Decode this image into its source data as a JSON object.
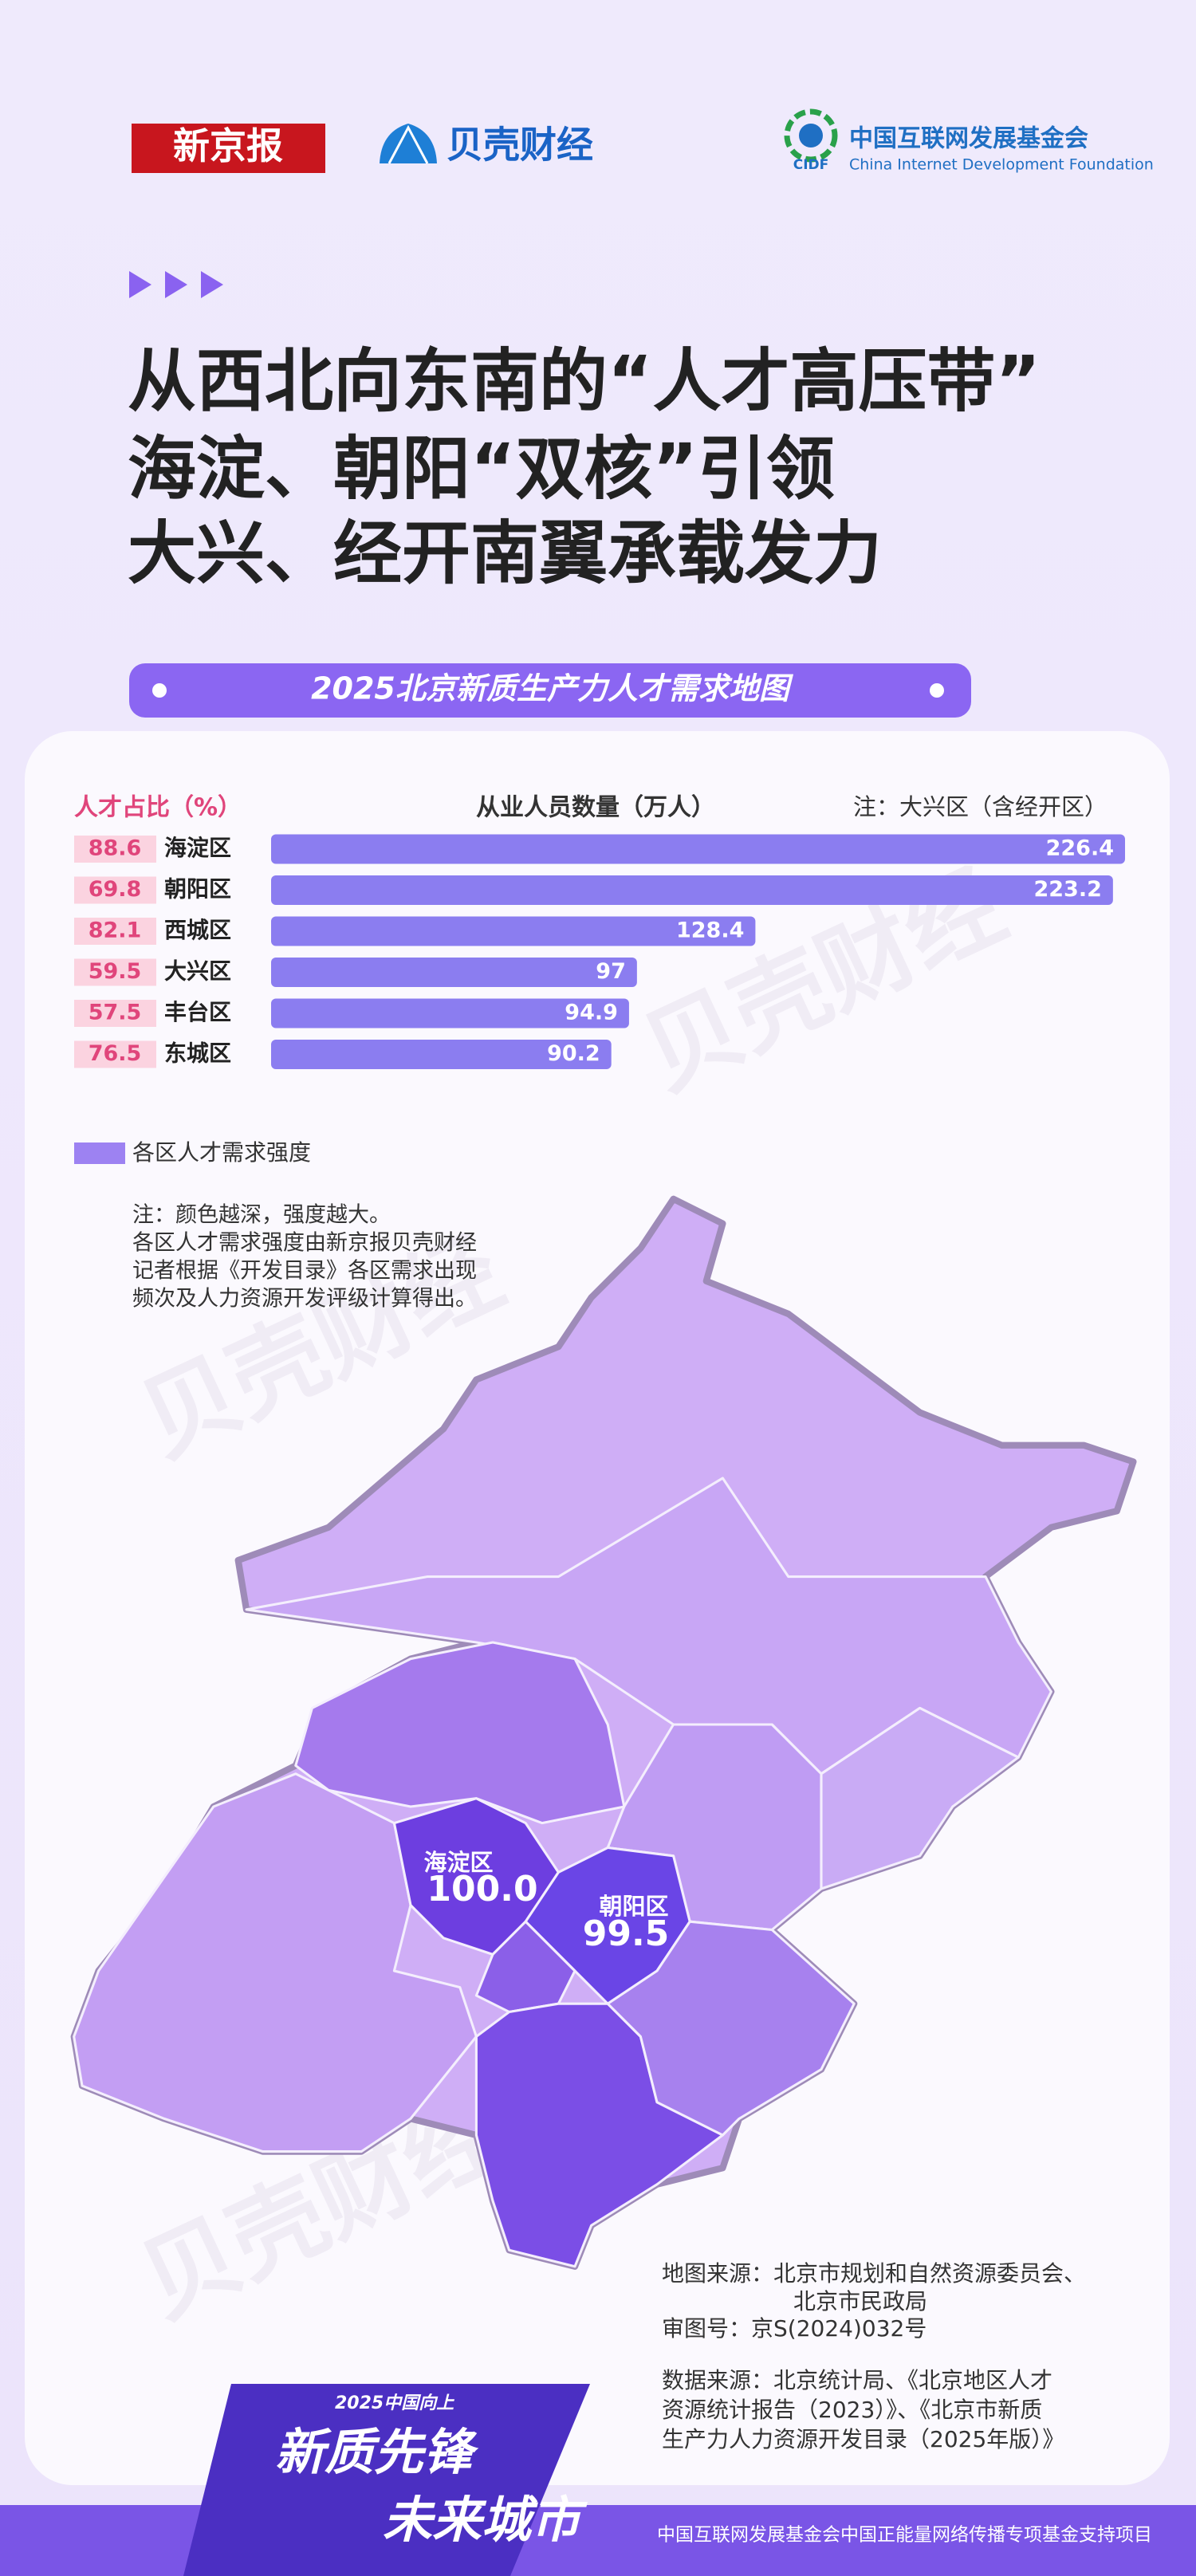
{
  "header": {
    "logo_1": "新京报",
    "logo_2": "贝壳财经",
    "logo_3_cn": "中国互联网发展基金会",
    "logo_3_abbr": "CIDF",
    "logo_3_en": "China Internet Development Foundation"
  },
  "title": [
    "从西北向东南的“人才高压带”",
    "海淀、朝阳“双核”引领",
    "大兴、经开南翼承载发力"
  ],
  "banner": "2025北京新质生产力人才需求地图",
  "chart_data": {
    "type": "bar",
    "orientation": "horizontal",
    "share_label": "人才占比（%）",
    "title": "从业人员数量（万人）",
    "note": "注：大兴区（含经开区）",
    "categories": [
      "海淀区",
      "朝阳区",
      "西城区",
      "大兴区",
      "丰台区",
      "东城区"
    ],
    "values": [
      226.4,
      223.2,
      128.4,
      97,
      94.9,
      90.2
    ],
    "talent_share": [
      88.6,
      69.8,
      82.1,
      59.5,
      57.5,
      76.5
    ],
    "color": "#8b7df0"
  },
  "map": {
    "legend": "各区人才需求强度",
    "note": [
      "注：颜色越深，强度越大。",
      "各区人才需求强度由新京报贝壳财经",
      "记者根据《开发目录》各区需求出现",
      "频次及人力资源开发评级计算得出。"
    ],
    "regions": [
      "海淀区",
      "朝阳区"
    ],
    "values": [
      100,
      99.5
    ],
    "value_labels": [
      "100.0",
      "99.5"
    ]
  },
  "sources": [
    "地图来源：北京市规划和自然资源委员会、",
    "北京市民政局",
    "审图号：京S(2024)032号",
    "数据来源：北京统计局、《北京地区人才",
    "资源统计报告（2023）》、《北京市新质",
    "生产力人力资源开发目录（2025年版）》"
  ],
  "watermark": "贝壳财经",
  "footer": {
    "badge_top": "2025中国向上",
    "badge_1": "新质先锋",
    "badge_2": "未来城市",
    "text": "中国互联网发展基金会中国正能量网络传播专项基金支持项目"
  }
}
